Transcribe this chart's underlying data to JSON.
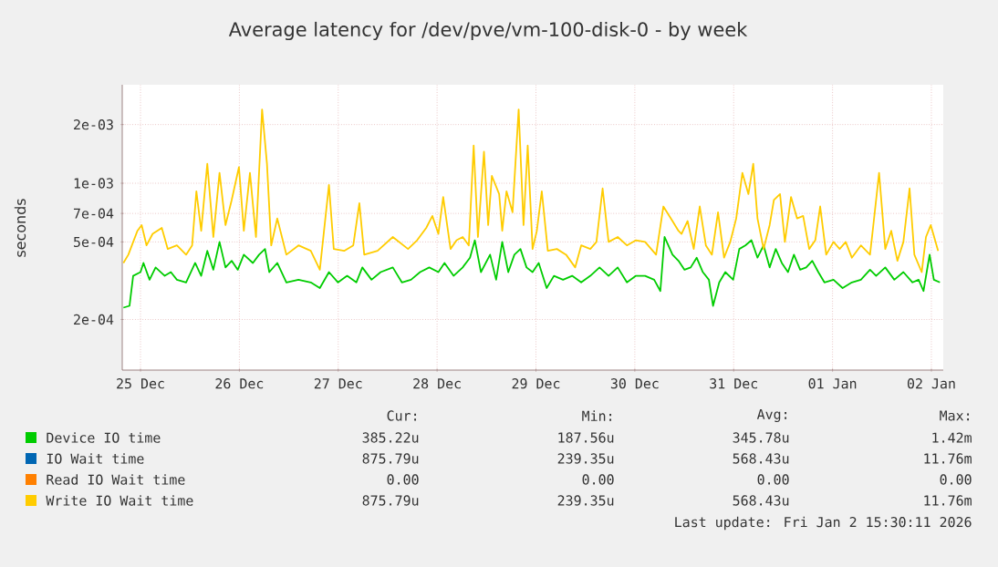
{
  "chart_data": {
    "type": "line",
    "title": "Average latency for /dev/pve/vm-100-disk-0 - by week",
    "ylabel": "seconds",
    "log": true,
    "grid": true,
    "legend": "bottom",
    "marker": "none",
    "line_style": "solid",
    "xlim": [
      "2025-12-25T07:34",
      "2026-01-02T14:53"
    ],
    "xticks": [
      {
        "value": "2025-12-25T12:00",
        "label": "25 Dec"
      },
      {
        "value": "2025-12-26T12:00",
        "label": "26 Dec"
      },
      {
        "value": "2025-12-27T12:00",
        "label": "27 Dec"
      },
      {
        "value": "2025-12-28T12:00",
        "label": "28 Dec"
      },
      {
        "value": "2025-12-29T12:00",
        "label": "29 Dec"
      },
      {
        "value": "2025-12-30T12:00",
        "label": "30 Dec"
      },
      {
        "value": "2025-12-31T12:00",
        "label": "31 Dec"
      },
      {
        "value": "2026-01-01T12:00",
        "label": "01 Jan"
      },
      {
        "value": "2026-01-02T12:00",
        "label": "02 Jan"
      }
    ],
    "ylim": [
      0.00011,
      0.0032
    ],
    "yticks": [
      {
        "value": 0.0002,
        "label": "2e-04"
      },
      {
        "value": 0.0005,
        "label": "5e-04"
      },
      {
        "value": 0.0007,
        "label": "7e-04"
      },
      {
        "value": 0.001,
        "label": "1e-03"
      },
      {
        "value": 0.002,
        "label": "2e-03"
      }
    ],
    "series": [
      {
        "name": "Device IO time",
        "color": "#00cc00",
        "x": [
          "2025-12-25T07:51",
          "2025-12-25T09:20",
          "2025-12-25T10:13",
          "2025-12-25T12:00",
          "2025-12-25T12:43",
          "2025-12-25T14:12",
          "2025-12-25T15:40",
          "2025-12-25T17:53",
          "2025-12-25T19:22",
          "2025-12-25T20:50",
          "2025-12-25T23:04",
          "2025-12-26T01:16",
          "2025-12-26T02:44",
          "2025-12-26T04:13",
          "2025-12-26T05:41",
          "2025-12-26T07:11",
          "2025-12-26T08:38",
          "2025-12-26T10:08",
          "2025-12-26T11:37",
          "2025-12-26T13:05",
          "2025-12-26T15:17",
          "2025-12-26T16:47",
          "2025-12-26T18:14",
          "2025-12-26T19:16",
          "2025-12-26T21:12",
          "2025-12-26T23:25",
          "2025-12-27T02:21",
          "2025-12-27T05:20",
          "2025-12-27T07:32",
          "2025-12-27T09:45",
          "2025-12-27T11:57",
          "2025-12-27T14:10",
          "2025-12-27T16:24",
          "2025-12-27T17:51",
          "2025-12-27T20:05",
          "2025-12-27T22:18",
          "2025-12-28T01:15",
          "2025-12-28T03:27",
          "2025-12-28T05:40",
          "2025-12-28T07:52",
          "2025-12-28T10:06",
          "2025-12-28T12:19",
          "2025-12-28T13:48",
          "2025-12-28T16:00",
          "2025-12-28T18:13",
          "2025-12-28T19:59",
          "2025-12-28T21:10",
          "2025-12-28T22:39",
          "2025-12-29T00:52",
          "2025-12-29T02:20",
          "2025-12-29T03:49",
          "2025-12-29T05:17",
          "2025-12-29T06:46",
          "2025-12-29T08:14",
          "2025-12-29T09:43",
          "2025-12-29T11:11",
          "2025-12-29T12:40",
          "2025-12-29T14:36",
          "2025-12-29T16:22",
          "2025-12-29T18:35",
          "2025-12-29T20:47",
          "2025-12-29T22:59",
          "2025-12-30T01:12",
          "2025-12-30T03:26",
          "2025-12-30T05:38",
          "2025-12-30T07:51",
          "2025-12-30T10:05",
          "2025-12-30T12:17",
          "2025-12-30T14:30",
          "2025-12-30T16:42",
          "2025-12-30T18:12",
          "2025-12-30T19:13",
          "2025-12-30T21:09",
          "2025-12-30T22:36",
          "2025-12-31T00:04",
          "2025-12-31T01:34",
          "2025-12-31T03:01",
          "2025-12-31T04:31",
          "2025-12-31T05:59",
          "2025-12-31T07:00",
          "2025-12-31T08:30",
          "2025-12-31T09:58",
          "2025-12-31T11:53",
          "2025-12-31T13:22",
          "2025-12-31T14:50",
          "2025-12-31T16:19",
          "2025-12-31T17:47",
          "2025-12-31T19:16",
          "2025-12-31T20:44",
          "2025-12-31T22:13",
          "2025-12-31T23:41",
          "2026-01-01T01:11",
          "2026-01-01T02:38",
          "2026-01-01T04:08",
          "2026-01-01T05:36",
          "2026-01-01T07:05",
          "2026-01-01T08:33",
          "2026-01-01T10:02",
          "2026-01-01T12:14",
          "2026-01-01T14:27",
          "2026-01-01T16:41",
          "2026-01-01T18:53",
          "2026-01-01T21:06",
          "2026-01-01T22:35",
          "2026-01-02T00:48",
          "2026-01-02T03:00",
          "2026-01-02T05:12",
          "2026-01-02T07:25",
          "2026-01-02T08:54",
          "2026-01-02T10:05",
          "2026-01-02T11:34",
          "2026-01-02T12:36",
          "2026-01-02T14:04"
        ],
        "values": [
          0.00023,
          0.000235,
          0.000335,
          0.00035,
          0.00039,
          0.00032,
          0.00037,
          0.000335,
          0.00035,
          0.00032,
          0.00031,
          0.00039,
          0.000335,
          0.00045,
          0.00036,
          0.0005,
          0.00037,
          0.0004,
          0.00036,
          0.00043,
          0.00039,
          0.00043,
          0.00046,
          0.00035,
          0.00039,
          0.00031,
          0.00032,
          0.00031,
          0.00029,
          0.00035,
          0.00031,
          0.000335,
          0.00031,
          0.00037,
          0.00032,
          0.00035,
          0.00037,
          0.00031,
          0.00032,
          0.00035,
          0.00037,
          0.00035,
          0.00039,
          0.000335,
          0.00037,
          0.000415,
          0.00051,
          0.00035,
          0.00043,
          0.00032,
          0.0005,
          0.00035,
          0.00043,
          0.00046,
          0.00037,
          0.00035,
          0.00039,
          0.00029,
          0.000335,
          0.00032,
          0.000335,
          0.00031,
          0.000335,
          0.00037,
          0.000335,
          0.00037,
          0.00031,
          0.000335,
          0.000335,
          0.00032,
          0.00028,
          0.00053,
          0.00043,
          0.0004,
          0.00036,
          0.00037,
          0.000415,
          0.00035,
          0.00032,
          0.000235,
          0.00031,
          0.00035,
          0.00032,
          0.00046,
          0.00048,
          0.00051,
          0.000415,
          0.00048,
          0.00037,
          0.00046,
          0.00039,
          0.00035,
          0.00043,
          0.00036,
          0.00037,
          0.0004,
          0.00035,
          0.00031,
          0.00032,
          0.00029,
          0.00031,
          0.00032,
          0.00036,
          0.000335,
          0.00037,
          0.00032,
          0.00035,
          0.00031,
          0.00032,
          0.00028,
          0.00043,
          0.00032,
          0.00031
        ]
      },
      {
        "name": "IO Wait time",
        "color": "#0066b3"
      },
      {
        "name": "Read IO Wait time",
        "color": "#ff8000"
      },
      {
        "name": "Write IO Wait time",
        "color": "#ffcc00",
        "x": [
          "2025-12-25T07:51",
          "2025-12-25T09:03",
          "2025-12-25T11:15",
          "2025-12-25T12:17",
          "2025-12-25T13:28",
          "2025-12-25T14:57",
          "2025-12-25T17:10",
          "2025-12-25T18:37",
          "2025-12-25T20:50",
          "2025-12-25T23:04",
          "2025-12-26T00:32",
          "2025-12-26T01:34",
          "2025-12-26T02:44",
          "2025-12-26T04:13",
          "2025-12-26T05:41",
          "2025-12-26T07:11",
          "2025-12-26T08:38",
          "2025-12-26T10:08",
          "2025-12-26T11:54",
          "2025-12-26T13:05",
          "2025-12-26T14:34",
          "2025-12-26T16:02",
          "2025-12-26T17:31",
          "2025-12-26T18:42",
          "2025-12-26T19:44",
          "2025-12-26T21:12",
          "2025-12-26T23:25",
          "2025-12-27T02:21",
          "2025-12-27T05:20",
          "2025-12-27T07:32",
          "2025-12-27T09:45",
          "2025-12-27T10:55",
          "2025-12-27T13:26",
          "2025-12-27T15:39",
          "2025-12-27T17:08",
          "2025-12-27T18:19",
          "2025-12-27T21:33",
          "2025-12-28T01:15",
          "2025-12-28T04:57",
          "2025-12-28T07:09",
          "2025-12-28T09:22",
          "2025-12-28T10:51",
          "2025-12-28T12:19",
          "2025-12-28T13:29",
          "2025-12-28T15:16",
          "2025-12-28T16:44",
          "2025-12-28T18:13",
          "2025-12-28T19:42",
          "2025-12-28T20:53",
          "2025-12-28T21:55",
          "2025-12-28T23:23",
          "2025-12-29T00:24",
          "2025-12-29T01:18",
          "2025-12-29T03:04",
          "2025-12-29T03:49",
          "2025-12-29T04:51",
          "2025-12-29T06:19",
          "2025-12-29T07:48",
          "2025-12-29T08:59",
          "2025-12-29T10:00",
          "2025-12-29T11:11",
          "2025-12-29T12:13",
          "2025-12-29T13:25",
          "2025-12-29T14:53",
          "2025-12-29T17:05",
          "2025-12-29T19:19",
          "2025-12-29T21:32",
          "2025-12-29T22:59",
          "2025-12-30T01:12",
          "2025-12-30T02:41",
          "2025-12-30T04:11",
          "2025-12-30T05:38",
          "2025-12-30T07:51",
          "2025-12-30T10:05",
          "2025-12-30T12:17",
          "2025-12-30T14:30",
          "2025-12-30T17:10",
          "2025-12-30T18:56",
          "2025-12-30T21:09",
          "2025-12-30T22:36",
          "2025-12-30T23:21",
          "2025-12-31T00:49",
          "2025-12-31T02:18",
          "2025-12-31T03:46",
          "2025-12-31T05:15",
          "2025-12-31T06:43",
          "2025-12-31T08:12",
          "2025-12-31T09:40",
          "2025-12-31T11:10",
          "2025-12-31T12:37",
          "2025-12-31T14:07",
          "2025-12-31T15:35",
          "2025-12-31T16:45",
          "2025-12-31T17:47",
          "2025-12-31T19:16",
          "2025-12-31T20:44",
          "2025-12-31T21:46",
          "2025-12-31T23:15",
          "2026-01-01T00:26",
          "2026-01-01T01:55",
          "2026-01-01T03:23",
          "2026-01-01T04:52",
          "2026-01-01T06:20",
          "2026-01-01T07:49",
          "2026-01-01T09:00",
          "2026-01-01T10:28",
          "2026-01-01T12:14",
          "2026-01-01T13:44",
          "2026-01-01T15:12",
          "2026-01-01T16:41",
          "2026-01-01T18:53",
          "2026-01-01T21:06",
          "2026-01-01T21:50",
          "2026-01-01T23:18",
          "2026-01-02T00:48",
          "2026-01-02T02:15",
          "2026-01-02T03:45",
          "2026-01-02T05:12",
          "2026-01-02T06:42",
          "2026-01-02T07:52",
          "2026-01-02T09:39",
          "2026-01-02T10:41",
          "2026-01-02T11:51",
          "2026-01-02T13:38"
        ],
        "values": [
          0.00039,
          0.00043,
          0.00057,
          0.00061,
          0.00048,
          0.00055,
          0.00059,
          0.00046,
          0.00048,
          0.00043,
          0.00048,
          0.00091,
          0.00057,
          0.00126,
          0.00053,
          0.00113,
          0.00061,
          0.00082,
          0.00121,
          0.00057,
          0.00113,
          0.00053,
          0.00239,
          0.00126,
          0.00048,
          0.00066,
          0.00043,
          0.00048,
          0.00045,
          0.00036,
          0.00098,
          0.00046,
          0.00045,
          0.00048,
          0.00079,
          0.00043,
          0.00045,
          0.00053,
          0.00046,
          0.00051,
          0.00059,
          0.00068,
          0.00055,
          0.00085,
          0.00046,
          0.00051,
          0.00053,
          0.00048,
          0.00156,
          0.00053,
          0.00145,
          0.00061,
          0.00109,
          0.00088,
          0.00057,
          0.00091,
          0.00071,
          0.00239,
          0.00061,
          0.00156,
          0.00046,
          0.00057,
          0.00091,
          0.00045,
          0.00046,
          0.00043,
          0.00037,
          0.00048,
          0.00046,
          0.0005,
          0.00094,
          0.0005,
          0.00053,
          0.00048,
          0.00051,
          0.0005,
          0.00043,
          0.00076,
          0.00064,
          0.00057,
          0.00055,
          0.00064,
          0.00046,
          0.00076,
          0.00048,
          0.00043,
          0.00071,
          0.000415,
          0.0005,
          0.00066,
          0.00113,
          0.00088,
          0.00126,
          0.00066,
          0.00046,
          0.00061,
          0.00082,
          0.00088,
          0.0005,
          0.00085,
          0.00066,
          0.00068,
          0.00046,
          0.00051,
          0.00076,
          0.00043,
          0.0005,
          0.00046,
          0.0005,
          0.000415,
          0.00048,
          0.00043,
          0.00059,
          0.00113,
          0.00046,
          0.00057,
          0.0004,
          0.0005,
          0.00094,
          0.00043,
          0.00035,
          0.00053,
          0.00061,
          0.00045
        ]
      }
    ],
    "annotations": [
      "Cur:",
      "Min:",
      "Avg:",
      "Max:",
      "385.22u",
      "187.56u",
      "345.78u",
      "1.42m",
      "875.79u",
      "239.35u",
      "568.43u",
      "11.76m",
      "0.00",
      "0.00",
      "0.00",
      "0.00",
      "875.79u",
      "239.35u",
      "568.43u",
      "11.76m",
      "Last update: Fri Jan  2 15:30:11 2026"
    ]
  }
}
